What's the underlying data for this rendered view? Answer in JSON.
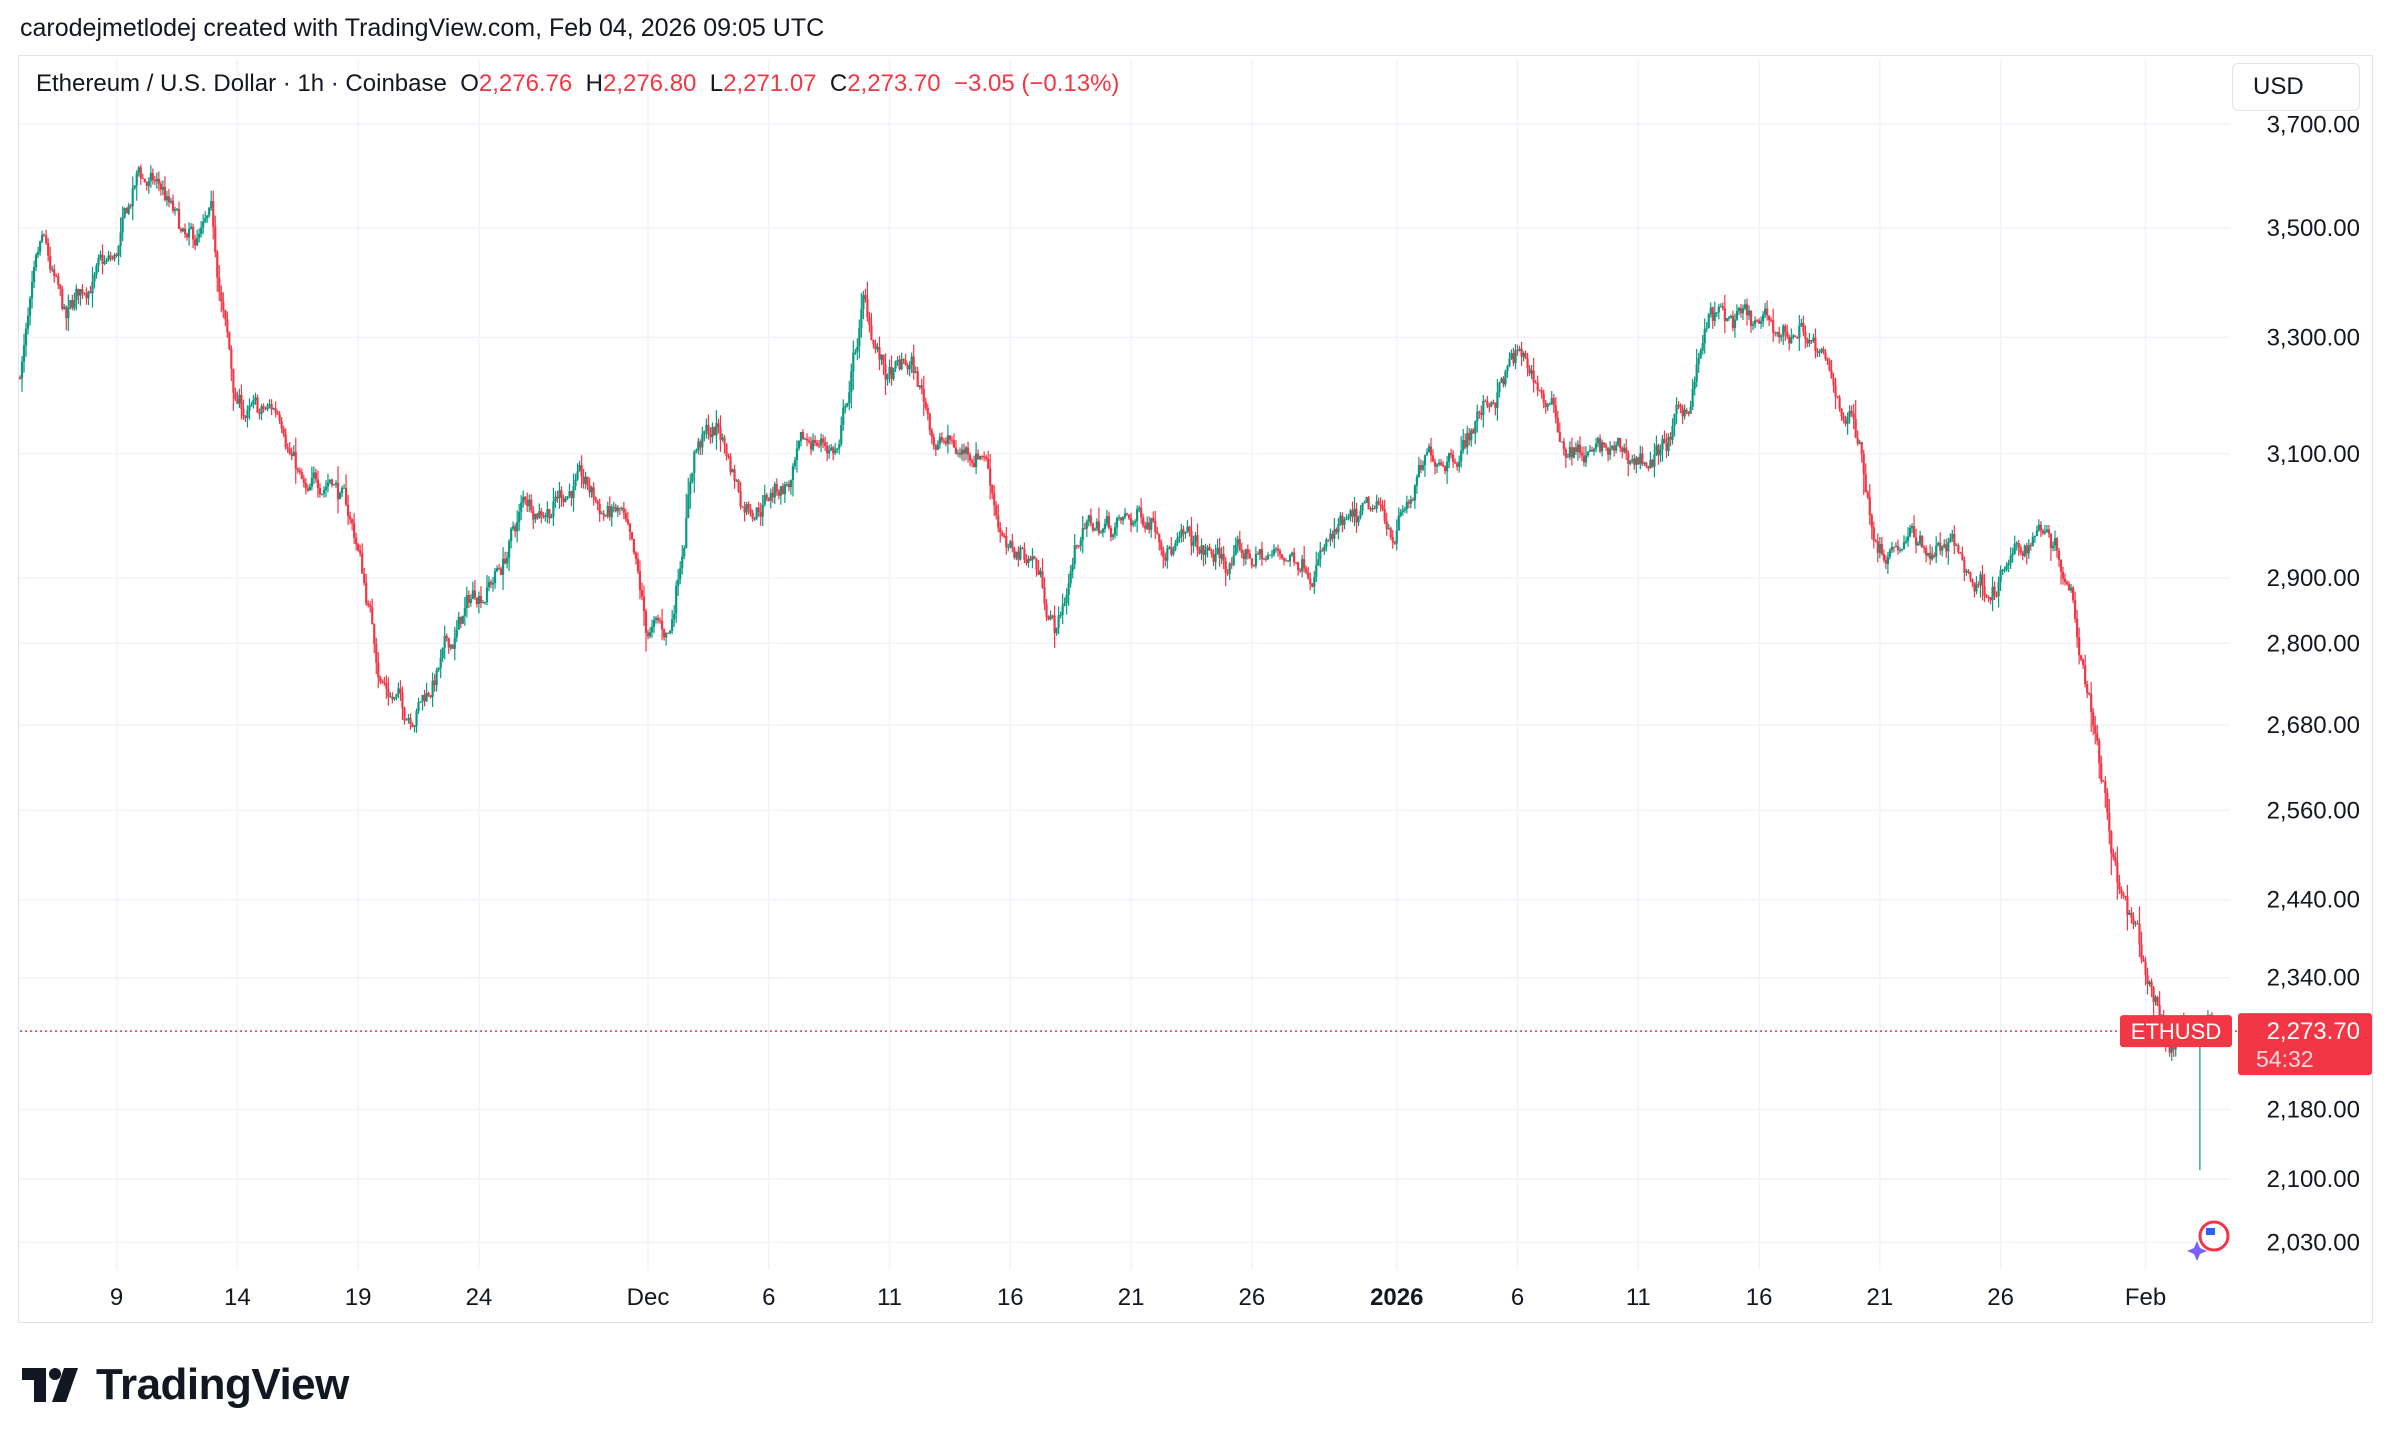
{
  "header": {
    "credit": "carodejmetlodej created with TradingView.com, Feb 04, 2026 09:05 UTC"
  },
  "legend": {
    "symbol": "Ethereum / U.S. Dollar · 1h · Coinbase",
    "o_label": "O",
    "o_value": "2,276.76",
    "h_label": "H",
    "h_value": "2,276.80",
    "l_label": "L",
    "l_value": "2,271.07",
    "c_label": "C",
    "c_value": "2,273.70",
    "change": "−3.05 (−0.13%)"
  },
  "currency": "USD",
  "price_tag": {
    "symbol": "ETHUSD",
    "price": "2,273.70",
    "countdown": "54:32"
  },
  "footer": {
    "brand": "TradingView"
  },
  "colors": {
    "up": "#089981",
    "down": "#f23645",
    "grid": "#f0f3fa",
    "text": "#131722"
  },
  "chart_data": {
    "type": "candlestick",
    "title": "Ethereum / U.S. Dollar · 1h · Coinbase",
    "y_axis": {
      "scale": "log",
      "ticks": [
        3700,
        3500,
        3300,
        3100,
        2900,
        2800,
        2680,
        2560,
        2440,
        2340,
        2180,
        2100,
        2030
      ],
      "tick_labels": [
        "3,700.00",
        "3,500.00",
        "3,300.00",
        "3,100.00",
        "2,900.00",
        "2,800.00",
        "2,680.00",
        "2,560.00",
        "2,440.00",
        "2,340.00",
        "2,180.00",
        "2,100.00",
        "2,030.00"
      ],
      "range": [
        2000,
        3830
      ]
    },
    "x_axis": {
      "tick_labels": [
        "9",
        "14",
        "19",
        "24",
        "Dec",
        "6",
        "11",
        "16",
        "21",
        "26",
        "2026",
        "6",
        "11",
        "16",
        "21",
        "26",
        "Feb"
      ],
      "tick_dates": [
        "2025-11-09",
        "2025-11-14",
        "2025-11-19",
        "2025-11-24",
        "2025-12-01",
        "2025-12-06",
        "2025-12-11",
        "2025-12-16",
        "2025-12-21",
        "2025-12-26",
        "2026-01-01",
        "2026-01-06",
        "2026-01-11",
        "2026-01-16",
        "2026-01-21",
        "2026-01-26",
        "2026-02-01"
      ],
      "bold": [
        "2026"
      ],
      "range": [
        "2025-11-05",
        "2026-02-04"
      ]
    },
    "series": [
      {
        "name": "ETHUSD",
        "price_path": [
          [
            "2025-11-05",
            3230
          ],
          [
            "2025-11-06",
            3440
          ],
          [
            "2025-11-07",
            3300
          ],
          [
            "2025-11-08",
            3410
          ],
          [
            "2025-11-09",
            3420
          ],
          [
            "2025-11-10",
            3590
          ],
          [
            "2025-11-11",
            3560
          ],
          [
            "2025-11-12",
            3440
          ],
          [
            "2025-11-13",
            3480
          ],
          [
            "2025-11-14",
            3180
          ],
          [
            "2025-11-15",
            3150
          ],
          [
            "2025-11-16",
            3170
          ],
          [
            "2025-11-17",
            3010
          ],
          [
            "2025-11-18",
            3080
          ],
          [
            "2025-11-19",
            2960
          ],
          [
            "2025-11-20",
            2760
          ],
          [
            "2025-11-21",
            2700
          ],
          [
            "2025-11-22",
            2740
          ],
          [
            "2025-11-23",
            2800
          ],
          [
            "2025-11-24",
            2880
          ],
          [
            "2025-11-25",
            2920
          ],
          [
            "2025-11-26",
            3020
          ],
          [
            "2025-11-27",
            3030
          ],
          [
            "2025-11-28",
            3060
          ],
          [
            "2025-11-29",
            3010
          ],
          [
            "2025-11-30",
            2990
          ],
          [
            "2025-12-01",
            2800
          ],
          [
            "2025-12-02",
            2810
          ],
          [
            "2025-12-03",
            3120
          ],
          [
            "2025-12-04",
            3140
          ],
          [
            "2025-12-05",
            3030
          ],
          [
            "2025-12-06",
            3040
          ],
          [
            "2025-12-07",
            3060
          ],
          [
            "2025-12-08",
            3120
          ],
          [
            "2025-12-09",
            3110
          ],
          [
            "2025-12-10",
            3350
          ],
          [
            "2025-12-11",
            3220
          ],
          [
            "2025-12-12",
            3240
          ],
          [
            "2025-12-13",
            3130
          ],
          [
            "2025-12-14",
            3100
          ],
          [
            "2025-12-15",
            3120
          ],
          [
            "2025-12-16",
            2930
          ],
          [
            "2025-12-17",
            2940
          ],
          [
            "2025-12-18",
            2820
          ],
          [
            "2025-12-19",
            2980
          ],
          [
            "2025-12-20",
            2980
          ],
          [
            "2025-12-21",
            2980
          ],
          [
            "2025-12-22",
            3010
          ],
          [
            "2025-12-23",
            2960
          ],
          [
            "2025-12-24",
            2930
          ],
          [
            "2025-12-25",
            2920
          ],
          [
            "2025-12-26",
            2930
          ],
          [
            "2025-12-27",
            2930
          ],
          [
            "2025-12-28",
            2940
          ],
          [
            "2025-12-29",
            2950
          ],
          [
            "2025-12-30",
            2960
          ],
          [
            "2025-12-31",
            2980
          ],
          [
            "2026-01-01",
            2980
          ],
          [
            "2026-01-02",
            3050
          ],
          [
            "2026-01-03",
            3110
          ],
          [
            "2026-01-04",
            3140
          ],
          [
            "2026-01-05",
            3200
          ],
          [
            "2026-01-06",
            3260
          ],
          [
            "2026-01-07",
            3210
          ],
          [
            "2026-01-08",
            3120
          ],
          [
            "2026-01-09",
            3100
          ],
          [
            "2026-01-10",
            3090
          ],
          [
            "2026-01-11",
            3090
          ],
          [
            "2026-01-12",
            3100
          ],
          [
            "2026-01-13",
            3160
          ],
          [
            "2026-01-14",
            3330
          ],
          [
            "2026-01-15",
            3320
          ],
          [
            "2026-01-16",
            3300
          ],
          [
            "2026-01-17",
            3300
          ],
          [
            "2026-01-18",
            3320
          ],
          [
            "2026-01-19",
            3210
          ],
          [
            "2026-01-20",
            3160
          ],
          [
            "2026-01-21",
            2960
          ],
          [
            "2026-01-22",
            2970
          ],
          [
            "2026-01-23",
            2950
          ],
          [
            "2026-01-24",
            2950
          ],
          [
            "2026-01-25",
            2890
          ],
          [
            "2026-01-26",
            2900
          ],
          [
            "2026-01-27",
            2940
          ],
          [
            "2026-01-28",
            3000
          ],
          [
            "2026-01-29",
            2900
          ],
          [
            "2026-01-30",
            2700
          ],
          [
            "2026-01-31",
            2460
          ],
          [
            "2026-02-01",
            2350
          ],
          [
            "2026-02-02",
            2260
          ],
          [
            "2026-02-03",
            2290
          ],
          [
            "2026-02-04",
            2273.7
          ]
        ]
      }
    ],
    "last_price": 2273.7,
    "lows": [
      [
        "2026-02-03",
        2110
      ]
    ],
    "grid": true
  }
}
